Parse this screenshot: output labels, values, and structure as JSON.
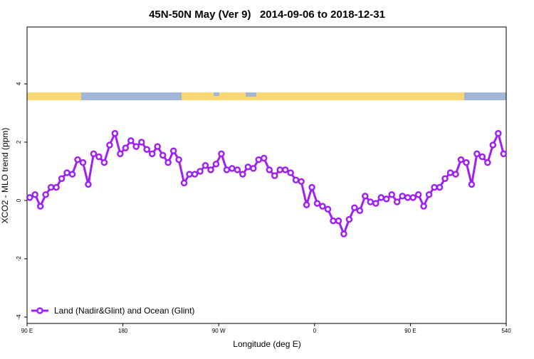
{
  "chart_data": {
    "type": "line",
    "title": "45N-50N May (Ver 9)   2014-09-06 to 2018-12-31",
    "x_label": "Longitude (deg E)",
    "y_label": "XCO2 - MLO trend (ppm)",
    "x": [
      92.5,
      97.5,
      102.5,
      107.5,
      112.5,
      117.5,
      122.5,
      127.5,
      132.5,
      137.5,
      142.5,
      147.5,
      152.5,
      157.5,
      162.5,
      167.5,
      172.5,
      177.5,
      182.5,
      187.5,
      192.5,
      197.5,
      202.5,
      207.5,
      212.5,
      217.5,
      222.5,
      227.5,
      232.5,
      237.5,
      242.5,
      247.5,
      252.5,
      257.5,
      262.5,
      267.5,
      272.5,
      277.5,
      282.5,
      287.5,
      292.5,
      297.5,
      302.5,
      307.5,
      312.5,
      317.5,
      322.5,
      327.5,
      332.5,
      337.5,
      342.5,
      347.5,
      352.5,
      357.5,
      362.5,
      367.5,
      372.5,
      377.5,
      382.5,
      387.5,
      392.5,
      397.5,
      402.5,
      407.5,
      412.5,
      417.5,
      422.5,
      427.5,
      432.5,
      437.5,
      442.5,
      447.5,
      452.5,
      457.5,
      462.5,
      467.5,
      472.5,
      477.5,
      482.5,
      487.5,
      492.5,
      497.5,
      502.5,
      507.5,
      512.5,
      517.5,
      522.5,
      527.5,
      532.5,
      537.5
    ],
    "series": [
      {
        "name": "Land (Nadir&Glint) and Ocean (Glint)",
        "color": "#a020f0",
        "values": [
          0.1,
          0.2,
          -0.2,
          0.2,
          0.45,
          0.45,
          0.75,
          0.95,
          0.9,
          1.4,
          1.3,
          0.55,
          1.6,
          1.5,
          1.3,
          1.9,
          2.3,
          1.6,
          1.8,
          2.05,
          1.85,
          2.0,
          1.75,
          1.6,
          1.85,
          1.55,
          1.3,
          1.7,
          1.4,
          0.6,
          0.9,
          0.9,
          1.0,
          1.2,
          1.05,
          1.25,
          1.6,
          1.05,
          1.1,
          1.05,
          0.9,
          1.15,
          1.1,
          1.4,
          1.45,
          1.05,
          0.85,
          1.05,
          1.05,
          0.95,
          0.7,
          0.65,
          -0.15,
          0.45,
          -0.1,
          -0.2,
          -0.3,
          -0.7,
          -0.7,
          -1.15,
          -0.65,
          -0.25,
          -0.35,
          0.15,
          -0.05,
          -0.1,
          0.1,
          0.05,
          0.2,
          -0.05,
          0.15,
          0.1,
          0.1,
          0.2,
          -0.2,
          0.2,
          0.45,
          0.45,
          0.75,
          0.95,
          0.9,
          1.4,
          1.3,
          0.55,
          1.6,
          1.5,
          1.3,
          1.9,
          2.3,
          1.6
        ]
      }
    ],
    "xlim": [
      90,
      540
    ],
    "ylim": [
      -4.22,
      5.95
    ],
    "xticks": [
      {
        "value": 90,
        "label": "90 E"
      },
      180,
      {
        "value": 270,
        "label": "90 W"
      },
      {
        "value": 360,
        "label": "0"
      },
      {
        "value": 450,
        "label": "90 E"
      },
      540
    ],
    "yticks": [
      -4,
      -2,
      0,
      2,
      4
    ],
    "legend": "bottom-left"
  }
}
